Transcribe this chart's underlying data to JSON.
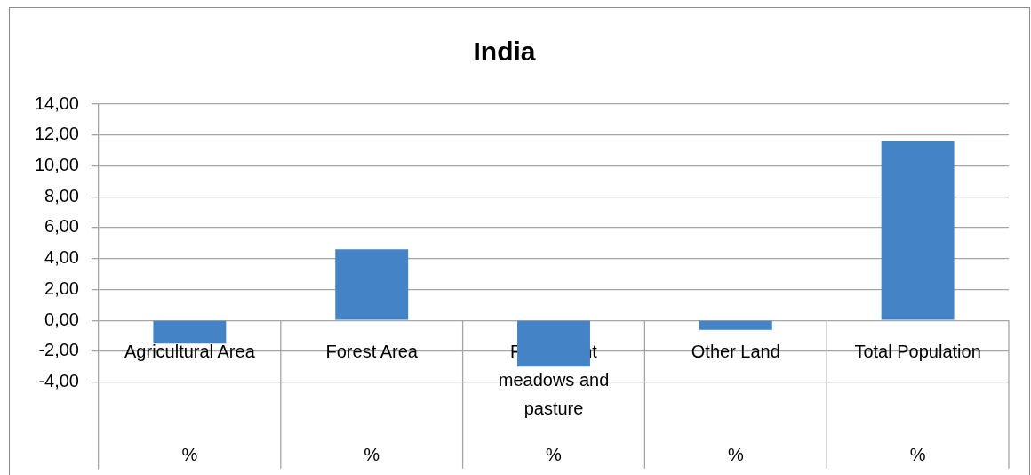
{
  "chart_data": {
    "type": "bar",
    "title": "India",
    "categories": [
      "Agricultural Area",
      "Forest Area",
      "Permanent meadows and pasture",
      "Other Land",
      "Total Population"
    ],
    "values": [
      -1.5,
      4.6,
      -3.0,
      -0.6,
      11.6
    ],
    "color": "#4383c6",
    "ylim": [
      -9.6,
      14
    ],
    "yticks": [
      {
        "value": -4,
        "label": "-4,00"
      },
      {
        "value": -2,
        "label": "-2,00"
      },
      {
        "value": 0,
        "label": "0,00"
      },
      {
        "value": 2,
        "label": "2,00"
      },
      {
        "value": 4,
        "label": "4,00"
      },
      {
        "value": 6,
        "label": "6,00"
      },
      {
        "value": 8,
        "label": "8,00"
      },
      {
        "value": 10,
        "label": "10,00"
      },
      {
        "value": 12,
        "label": "12,00"
      },
      {
        "value": 14,
        "label": "14,00"
      }
    ],
    "grid": "y",
    "annotations": [
      "%",
      "%",
      "%",
      "%",
      "%"
    ]
  }
}
